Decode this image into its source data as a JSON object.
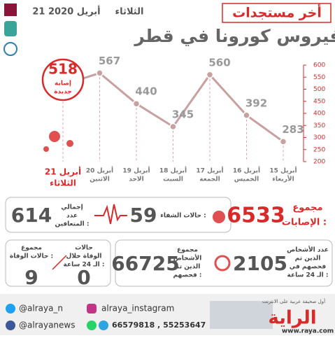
{
  "header": {
    "weekday": "الثلاثاء",
    "date": "21 أبريل 2020",
    "kicker": "أخر مستجدات",
    "title": "فيروس كورونا في قطر"
  },
  "chart_data": {
    "type": "line",
    "categories": [
      "15 أبريل",
      "16 أبريل",
      "17 أبريل",
      "18 أبريل",
      "19 أبريل",
      "20 أبريل",
      "21 أبريل"
    ],
    "weekdays": [
      "الأربعاء",
      "الخميس",
      "الجمعة",
      "السبت",
      "الاحد",
      "الاثنين",
      "الثلاثاء"
    ],
    "values": [
      283,
      392,
      560,
      345,
      440,
      567,
      518
    ],
    "color": "#c9a0a0",
    "ylim": [
      200,
      600
    ],
    "yticks": [
      200,
      250,
      300,
      350,
      400,
      450,
      500,
      550,
      600
    ],
    "highlight_label": [
      "إصابة",
      "جديدة"
    ]
  },
  "stats": {
    "total_cases": {
      "label": [
        "مجموع",
        "الإصابات :"
      ],
      "value": "6533"
    },
    "recovered": {
      "label": [
        "حالات الشفاء :"
      ],
      "value": "59"
    },
    "total_recovered": {
      "label": [
        "إجمالي",
        "عدد",
        "المتعافين :"
      ],
      "value": "614"
    },
    "tested_24h": {
      "label": [
        "عدد الأشخاص",
        "الذين تم",
        "فحصهم في",
        "الـ 24 ساعة :"
      ],
      "value": "2105"
    },
    "total_tested": {
      "label": [
        "مجموع",
        "الأشخاص",
        "الذين تم",
        "فحصهم :"
      ],
      "value": "66725"
    },
    "deaths_24h": {
      "label": [
        "حالات",
        "الوفاة خلال",
        "الـ 24 ساعة :"
      ],
      "value": "0"
    },
    "total_deaths": {
      "label": [
        "مجموع",
        "حالات الوفاة :"
      ],
      "value": "9"
    }
  },
  "footer": {
    "twitter": "@alraya_n",
    "facebook": "@alrayanews",
    "instagram": "alraya_instagram",
    "phones": "66579818 , 55253647",
    "brand": "الراية",
    "tagline": "أول صحيفة عربية على الانترنت",
    "website": "www.raya.com"
  }
}
